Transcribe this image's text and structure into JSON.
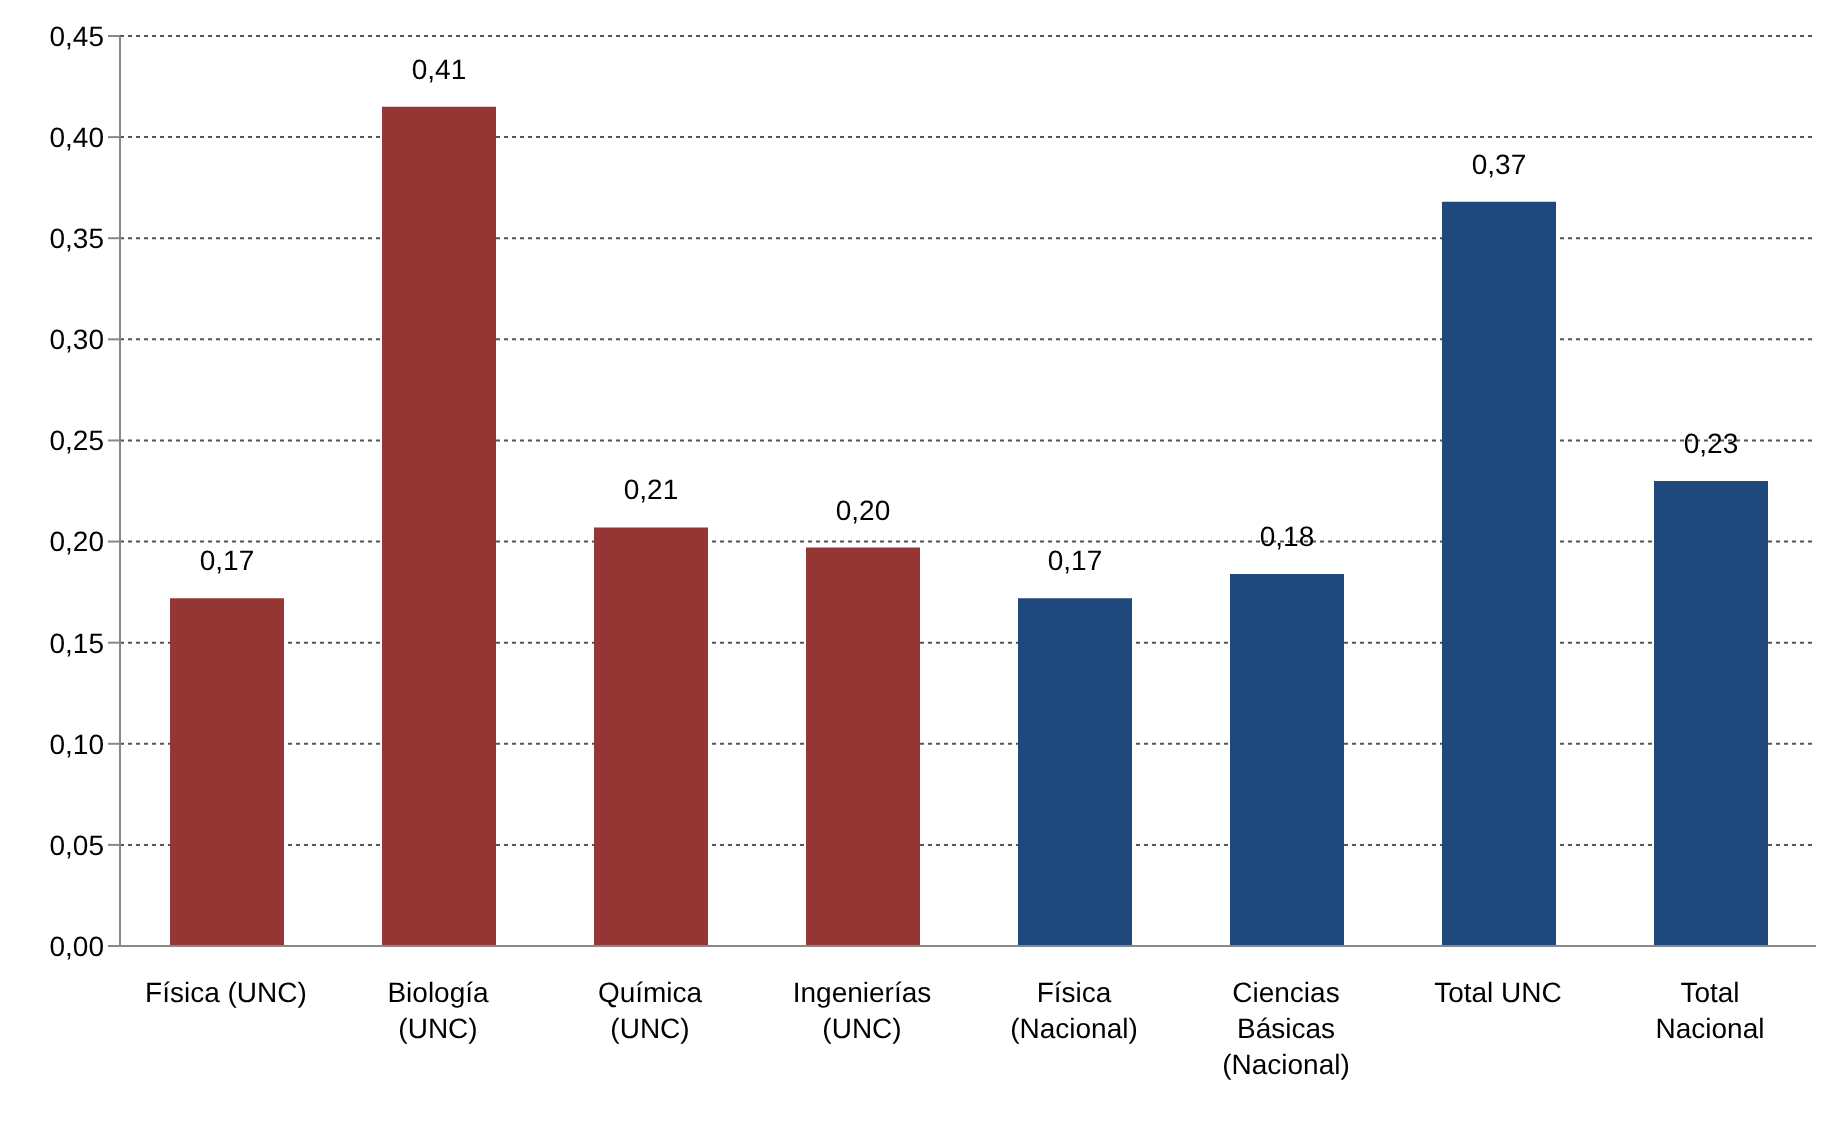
{
  "chart_data": {
    "type": "bar",
    "categories": [
      "Física (UNC)",
      "Biología (UNC)",
      "Química (UNC)",
      "Ingenierías (UNC)",
      "Física (Nacional)",
      "Ciencias Básicas (Nacional)",
      "Total UNC",
      "Total Nacional"
    ],
    "values": [
      0.172,
      0.415,
      0.207,
      0.197,
      0.172,
      0.184,
      0.368,
      0.23
    ],
    "value_labels": [
      "0,17",
      "0,41",
      "0,21",
      "0,20",
      "0,17",
      "0,18",
      "0,37",
      "0,23"
    ],
    "colors": [
      "#943634",
      "#943634",
      "#943634",
      "#943634",
      "#1f497d",
      "#1f497d",
      "#1f497d",
      "#1f497d"
    ],
    "ylim": [
      0,
      0.45
    ],
    "yticks": [
      {
        "value": 0,
        "label": "0,00"
      },
      {
        "value": 0.05,
        "label": "0,05"
      },
      {
        "value": 0.1,
        "label": "0,10"
      },
      {
        "value": 0.15,
        "label": "0,15"
      },
      {
        "value": 0.2,
        "label": "0,20"
      },
      {
        "value": 0.25,
        "label": "0,25"
      },
      {
        "value": 0.3,
        "label": "0,30"
      },
      {
        "value": 0.35,
        "label": "0,35"
      },
      {
        "value": 0.4,
        "label": "0,40"
      },
      {
        "value": 0.45,
        "label": "0,45"
      }
    ],
    "grid": "y"
  }
}
